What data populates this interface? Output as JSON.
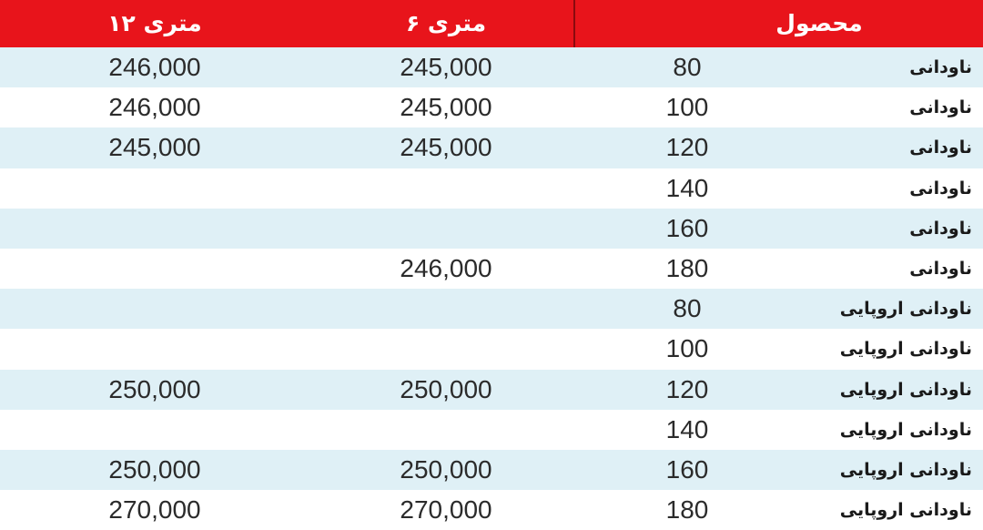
{
  "table": {
    "headers": {
      "product": "محصول",
      "six_meter": "۶ متری",
      "twelve_meter": "۱۲ متری"
    },
    "rows": [
      {
        "name": "ناودانی",
        "size": "80",
        "six_meter": "245,000",
        "twelve_meter": "246,000"
      },
      {
        "name": "ناودانی",
        "size": "100",
        "six_meter": "245,000",
        "twelve_meter": "246,000"
      },
      {
        "name": "ناودانی",
        "size": "120",
        "six_meter": "245,000",
        "twelve_meter": "245,000"
      },
      {
        "name": "ناودانی",
        "size": "140",
        "six_meter": "",
        "twelve_meter": ""
      },
      {
        "name": "ناودانی",
        "size": "160",
        "six_meter": "",
        "twelve_meter": ""
      },
      {
        "name": "ناودانی",
        "size": "180",
        "six_meter": "246,000",
        "twelve_meter": ""
      },
      {
        "name": "ناودانی اروپایی",
        "size": "80",
        "six_meter": "",
        "twelve_meter": ""
      },
      {
        "name": "ناودانی اروپایی",
        "size": "100",
        "six_meter": "",
        "twelve_meter": ""
      },
      {
        "name": "ناودانی اروپایی",
        "size": "120",
        "six_meter": "250,000",
        "twelve_meter": "250,000"
      },
      {
        "name": "ناودانی اروپایی",
        "size": "140",
        "six_meter": "",
        "twelve_meter": ""
      },
      {
        "name": "ناودانی اروپایی",
        "size": "160",
        "six_meter": "250,000",
        "twelve_meter": "250,000"
      },
      {
        "name": "ناودانی اروپایی",
        "size": "180",
        "six_meter": "270,000",
        "twelve_meter": "270,000"
      }
    ]
  },
  "colors": {
    "header_bg": "#e8141b",
    "row_alt_bg": "#dff0f6",
    "row_plain_bg": "#ffffff"
  }
}
